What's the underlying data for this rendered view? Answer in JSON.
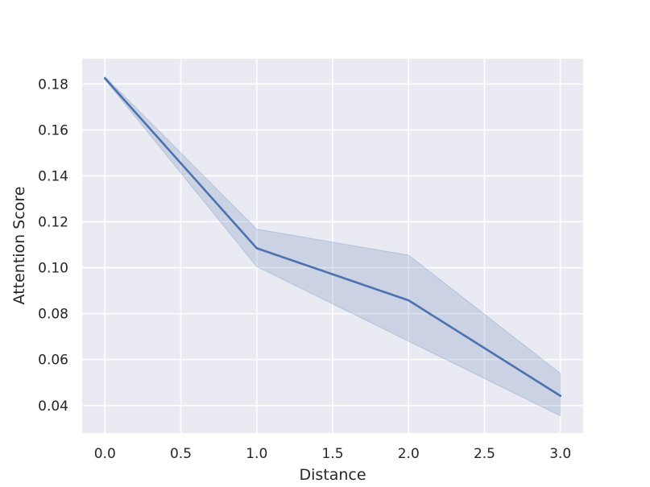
{
  "chart_data": {
    "type": "line",
    "title": "",
    "xlabel": "Distance",
    "ylabel": "Attention Score",
    "xlim": [
      -0.15,
      3.15
    ],
    "ylim": [
      0.028,
      0.191
    ],
    "x_ticks": [
      0.0,
      0.5,
      1.0,
      1.5,
      2.0,
      2.5,
      3.0
    ],
    "x_tick_labels": [
      "0.0",
      "0.5",
      "1.0",
      "1.5",
      "2.0",
      "2.5",
      "3.0"
    ],
    "y_ticks": [
      0.04,
      0.06,
      0.08,
      0.1,
      0.12,
      0.14,
      0.16,
      0.18
    ],
    "y_tick_labels": [
      "0.04",
      "0.06",
      "0.08",
      "0.10",
      "0.12",
      "0.14",
      "0.16",
      "0.18"
    ],
    "grid": true,
    "series": [
      {
        "x": [
          0,
          1,
          2,
          3
        ],
        "values": [
          0.1825,
          0.1085,
          0.0858,
          0.0442
        ],
        "ci_lower": [
          0.182,
          0.1005,
          0.068,
          0.0355
        ],
        "ci_upper": [
          0.1832,
          0.1168,
          0.1055,
          0.054
        ]
      }
    ],
    "colors": {
      "background": "#eaeaf2",
      "grid": "#ffffff",
      "line": "#4c72b0",
      "band": "#4c72b0"
    }
  }
}
